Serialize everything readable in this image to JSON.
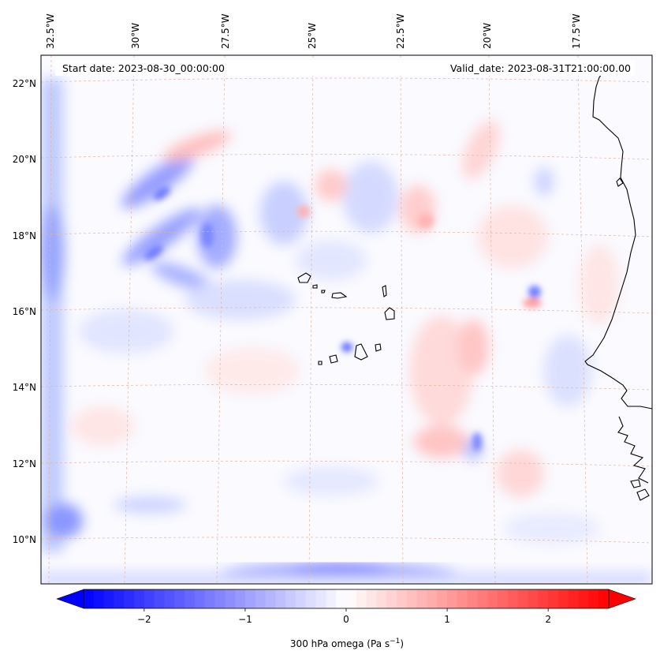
{
  "map": {
    "start_date": "Start date: 2023-08-30_00:00:00",
    "valid_date": "Valid_date: 2023-08-31T21:00:00.00",
    "lon_ticks": [
      "32.5°W",
      "30°W",
      "27.5°W",
      "25°W",
      "22.5°W",
      "20°W",
      "17.5°W"
    ],
    "lat_ticks": [
      "22°N",
      "20°N",
      "18°N",
      "16°N",
      "14°N",
      "12°N",
      "10°N"
    ],
    "field_colors": {
      "negative": "#0000ff",
      "neutral": "#ffffff",
      "positive": "#ff0000"
    }
  },
  "colorbar": {
    "label": "300 hPa omega (Pa s",
    "label_exp": "−1",
    "label_close": ")",
    "ticks": [
      "−2",
      "−1",
      "0",
      "1",
      "2"
    ],
    "tick_values": [
      -2,
      -1,
      0,
      1,
      2
    ],
    "range": [
      -2.6,
      2.6
    ]
  }
}
